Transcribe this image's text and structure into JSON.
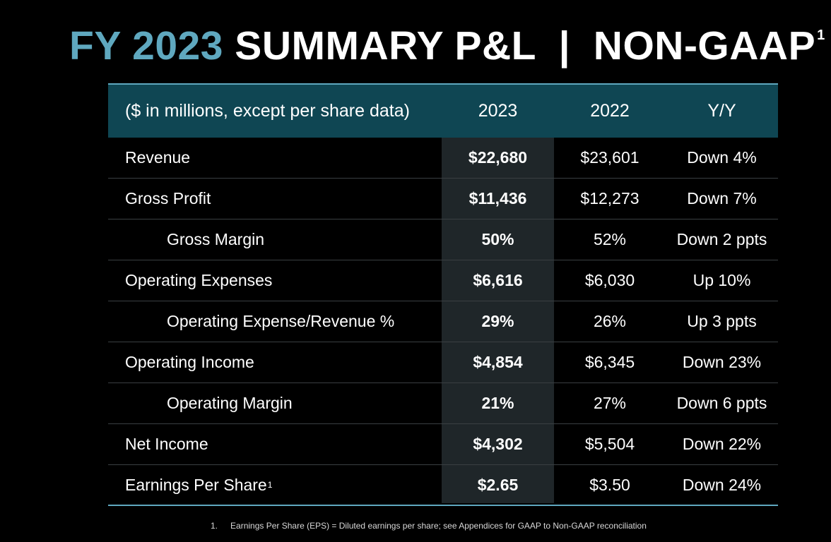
{
  "title": {
    "accent": "FY 2023",
    "main": "SUMMARY P&L",
    "separator": "|",
    "suffix": "NON-GAAP",
    "superscript": "1"
  },
  "table": {
    "header": {
      "label": "($ in millions, except per share data)",
      "col_2023": "2023",
      "col_2022": "2022",
      "col_yy": "Y/Y"
    },
    "rows": [
      {
        "label": "Revenue",
        "v2023": "$22,680",
        "v2022": "$23,601",
        "yy": "Down 4%"
      },
      {
        "label": "Gross Profit",
        "v2023": "$11,436",
        "v2022": "$12,273",
        "yy": "Down 7%"
      },
      {
        "label": "Gross Margin",
        "v2023": "50%",
        "v2022": "52%",
        "yy": "Down 2 ppts"
      },
      {
        "label": "Operating Expenses",
        "v2023": "$6,616",
        "v2022": "$6,030",
        "yy": "Up 10%"
      },
      {
        "label": "Operating Expense/Revenue %",
        "v2023": "29%",
        "v2022": "26%",
        "yy": "Up 3 ppts"
      },
      {
        "label": "Operating Income",
        "v2023": "$4,854",
        "v2022": "$6,345",
        "yy": "Down 23%"
      },
      {
        "label": "Operating Margin",
        "v2023": "21%",
        "v2022": "27%",
        "yy": "Down 6 ppts"
      },
      {
        "label": "Net Income",
        "v2023": "$4,302",
        "v2022": "$5,504",
        "yy": "Down 22%"
      },
      {
        "label": "Earnings Per Share",
        "label_sup": "1",
        "v2023": "$2.65",
        "v2022": "$3.50",
        "yy": "Down 24%"
      }
    ]
  },
  "footnote": {
    "number": "1.",
    "text": "Earnings Per Share (EPS) = Diluted earnings per share; see Appendices for GAAP to Non-GAAP reconciliation"
  },
  "colors": {
    "background": "#000000",
    "accent": "#5fa8bf",
    "header_fill": "#0f4653",
    "highlight_column": "#1f2629"
  }
}
